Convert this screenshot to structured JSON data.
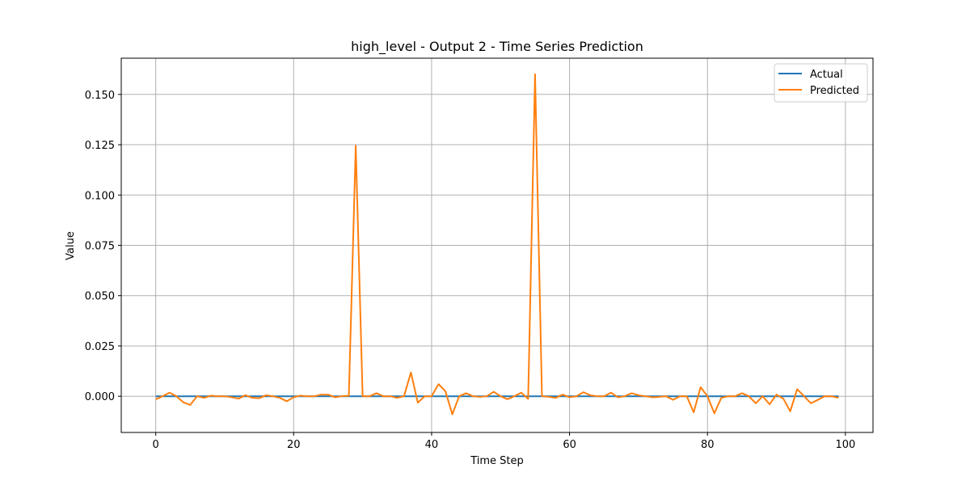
{
  "chart_data": {
    "type": "line",
    "title": "high_level - Output 2 - Time Series Prediction",
    "xlabel": "Time Step",
    "ylabel": "Value",
    "xlim": [
      -5,
      104
    ],
    "ylim": [
      -0.018,
      0.168
    ],
    "xticks": [
      0,
      20,
      40,
      60,
      80,
      100
    ],
    "yticks": [
      0.0,
      0.025,
      0.05,
      0.075,
      0.1,
      0.125,
      0.15
    ],
    "ytick_labels": [
      "0.000",
      "0.025",
      "0.050",
      "0.075",
      "0.100",
      "0.125",
      "0.150"
    ],
    "grid": true,
    "legend_position": "top-right",
    "series": [
      {
        "name": "Actual",
        "color": "#1f77b4",
        "x": [
          0,
          99
        ],
        "y": [
          0,
          0
        ]
      },
      {
        "name": "Predicted",
        "color": "#ff7f0e",
        "x": [
          0,
          1,
          2,
          3,
          4,
          5,
          6,
          7,
          8,
          9,
          10,
          11,
          12,
          13,
          14,
          15,
          16,
          17,
          18,
          19,
          20,
          21,
          22,
          23,
          24,
          25,
          26,
          27,
          28,
          29,
          30,
          31,
          32,
          33,
          34,
          35,
          36,
          37,
          38,
          39,
          40,
          41,
          42,
          43,
          44,
          45,
          46,
          47,
          48,
          49,
          50,
          51,
          52,
          53,
          54,
          55,
          56,
          57,
          58,
          59,
          60,
          61,
          62,
          63,
          64,
          65,
          66,
          67,
          68,
          69,
          70,
          71,
          72,
          73,
          74,
          75,
          76,
          77,
          78,
          79,
          80,
          81,
          82,
          83,
          84,
          85,
          86,
          87,
          88,
          89,
          90,
          91,
          92,
          93,
          94,
          95,
          96,
          97,
          98,
          99
        ],
        "y": [
          -0.0015,
          0.0,
          0.0018,
          0.0,
          -0.003,
          -0.0043,
          0.0,
          -0.0008,
          0.0003,
          0.0,
          0.0,
          -0.0005,
          -0.0012,
          0.0005,
          -0.0008,
          -0.001,
          0.0005,
          0.0,
          -0.0008,
          -0.0025,
          -0.0005,
          0.0003,
          0.0,
          0.0,
          0.0008,
          0.0008,
          -0.0005,
          0.0,
          0.0003,
          0.1245,
          0.0,
          0.0,
          0.0015,
          0.0,
          0.0,
          -0.0008,
          0.0,
          0.0118,
          -0.0032,
          0.0,
          0.0,
          0.006,
          0.0025,
          -0.009,
          0.0,
          0.0015,
          0.0,
          -0.0003,
          0.0,
          0.0022,
          0.0,
          -0.0015,
          0.0,
          0.0018,
          -0.0013,
          0.16,
          0.0,
          -0.0003,
          -0.0008,
          0.0008,
          -0.0005,
          0.0,
          0.002,
          0.0005,
          0.0,
          0.0,
          0.0018,
          -0.0005,
          0.0,
          0.0015,
          0.0005,
          0.0,
          -0.0005,
          -0.0003,
          0.0,
          -0.0018,
          0.0,
          0.0,
          -0.008,
          0.0045,
          0.0,
          -0.0085,
          -0.0008,
          0.0,
          0.0,
          0.0015,
          0.0,
          -0.0035,
          0.0,
          -0.004,
          0.0008,
          -0.0012,
          -0.0075,
          0.0035,
          0.0,
          -0.0035,
          -0.0018,
          0.0,
          0.0,
          -0.0008
        ]
      }
    ]
  }
}
